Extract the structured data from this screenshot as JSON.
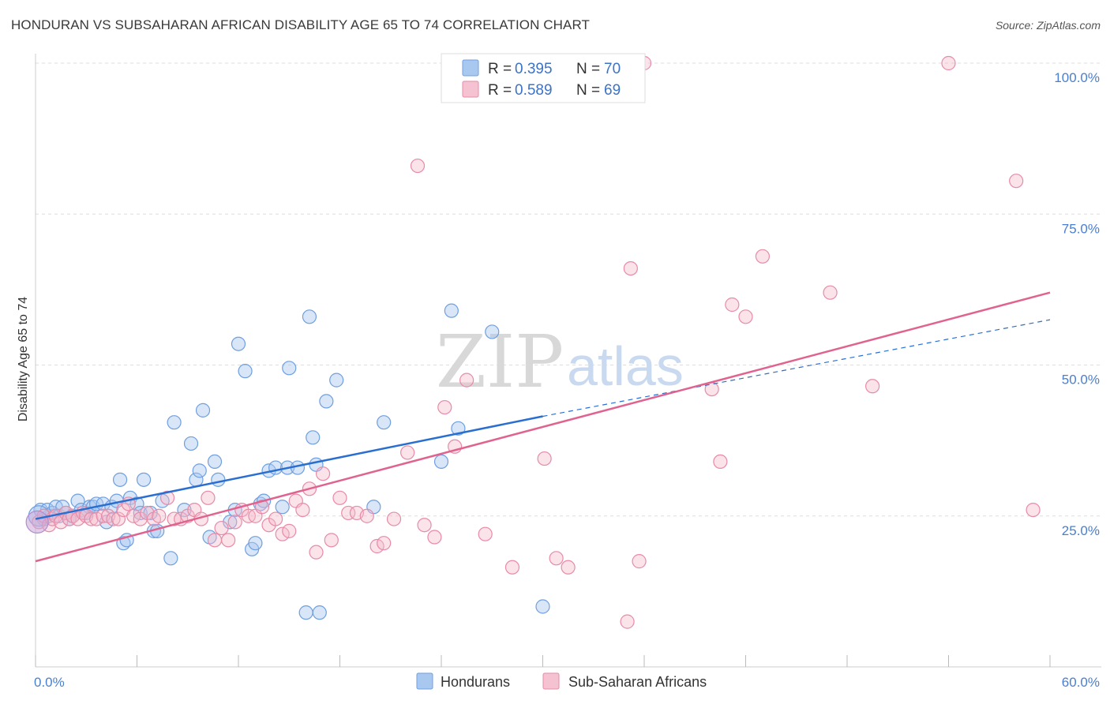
{
  "header": {
    "title": "HONDURAN VS SUBSAHARAN AFRICAN DISABILITY AGE 65 TO 74 CORRELATION CHART",
    "source": "Source: ZipAtlas.com"
  },
  "watermark": {
    "zip": "ZIP",
    "atlas": "atlas"
  },
  "legend_top": {
    "rows": [
      {
        "r_label": "R =",
        "r_value": "0.395",
        "n_label": "N =",
        "n_value": "70"
      },
      {
        "r_label": "R =",
        "r_value": "0.589",
        "n_label": "N =",
        "n_value": "69"
      }
    ]
  },
  "legend_bottom": {
    "items": [
      {
        "label": "Hondurans"
      },
      {
        "label": "Sub-Saharan Africans"
      }
    ]
  },
  "colors": {
    "blue_fill": "#a9c8f0",
    "blue_stroke": "#6f9fe0",
    "blue_line": "#2a6fd0",
    "pink_fill": "#f5b8cb",
    "pink_stroke": "#e88aa8",
    "pink_line": "#e0638f",
    "tick_label": "#4a7fd0",
    "grid": "#dddddd"
  },
  "chart_data": {
    "type": "scatter",
    "title": "HONDURAN VS SUBSAHARAN AFRICAN DISABILITY AGE 65 TO 74 CORRELATION CHART",
    "ylabel": "Disability Age 65 to 74",
    "xlabel": "",
    "xlim": [
      0,
      60
    ],
    "ylim": [
      0,
      100
    ],
    "x_tick_labels": [
      "0.0%",
      "60.0%"
    ],
    "y_tick_values": [
      25,
      50,
      75,
      100
    ],
    "y_tick_labels": [
      "25.0%",
      "50.0%",
      "75.0%",
      "100.0%"
    ],
    "grid": true,
    "series": [
      {
        "name": "Hondurans",
        "r": 0.395,
        "n": 70,
        "trend": {
          "x": [
            0,
            30
          ],
          "y": [
            24.5,
            41.5
          ],
          "dashed_to": [
            60,
            57.5
          ]
        },
        "points": [
          [
            0.3,
            26
          ],
          [
            0.5,
            24.5
          ],
          [
            0.7,
            26
          ],
          [
            0.8,
            25
          ],
          [
            1.0,
            25.5
          ],
          [
            1.2,
            26.5
          ],
          [
            1.4,
            25
          ],
          [
            1.6,
            26.5
          ],
          [
            1.8,
            25.5
          ],
          [
            2.0,
            24.5
          ],
          [
            2.2,
            25
          ],
          [
            2.5,
            27.5
          ],
          [
            2.7,
            26
          ],
          [
            3.0,
            25.5
          ],
          [
            3.2,
            26.5
          ],
          [
            3.4,
            26.5
          ],
          [
            3.6,
            27
          ],
          [
            4.0,
            27
          ],
          [
            4.2,
            24
          ],
          [
            4.5,
            26.5
          ],
          [
            4.8,
            27.5
          ],
          [
            5.0,
            31
          ],
          [
            5.2,
            20.5
          ],
          [
            5.4,
            21
          ],
          [
            5.6,
            28
          ],
          [
            6.0,
            27
          ],
          [
            6.2,
            25.5
          ],
          [
            6.4,
            31
          ],
          [
            6.8,
            25.5
          ],
          [
            7.0,
            22.5
          ],
          [
            7.2,
            22.5
          ],
          [
            7.5,
            27.5
          ],
          [
            8.0,
            18
          ],
          [
            8.2,
            40.5
          ],
          [
            8.8,
            26
          ],
          [
            9.2,
            37
          ],
          [
            9.5,
            31
          ],
          [
            9.7,
            32.5
          ],
          [
            9.9,
            42.5
          ],
          [
            10.3,
            21.5
          ],
          [
            10.6,
            34
          ],
          [
            10.8,
            31
          ],
          [
            11.5,
            24
          ],
          [
            11.8,
            26
          ],
          [
            12.0,
            53.5
          ],
          [
            12.4,
            49
          ],
          [
            12.8,
            19.5
          ],
          [
            13.0,
            20.5
          ],
          [
            13.3,
            27
          ],
          [
            13.5,
            27.5
          ],
          [
            13.8,
            32.5
          ],
          [
            14.2,
            33
          ],
          [
            14.6,
            26.5
          ],
          [
            14.9,
            33
          ],
          [
            15.0,
            49.5
          ],
          [
            15.5,
            33
          ],
          [
            16.0,
            9
          ],
          [
            16.2,
            58
          ],
          [
            16.4,
            38
          ],
          [
            16.6,
            33.5
          ],
          [
            16.8,
            9
          ],
          [
            17.2,
            44
          ],
          [
            17.8,
            47.5
          ],
          [
            20.0,
            26.5
          ],
          [
            20.6,
            40.5
          ],
          [
            24.0,
            34
          ],
          [
            24.6,
            59
          ],
          [
            25.0,
            39.5
          ],
          [
            27.0,
            55.5
          ],
          [
            30.0,
            10
          ]
        ]
      },
      {
        "name": "Sub-Saharan Africans",
        "r": 0.589,
        "n": 69,
        "trend": {
          "x": [
            0,
            60
          ],
          "y": [
            17.5,
            62
          ]
        },
        "points": [
          [
            0.2,
            24
          ],
          [
            0.5,
            25
          ],
          [
            0.8,
            23.5
          ],
          [
            1.0,
            24.5
          ],
          [
            1.2,
            25
          ],
          [
            1.5,
            24
          ],
          [
            1.8,
            25.5
          ],
          [
            2.0,
            24.5
          ],
          [
            2.2,
            25
          ],
          [
            2.5,
            24.5
          ],
          [
            2.8,
            25.5
          ],
          [
            3.0,
            25
          ],
          [
            3.3,
            24.5
          ],
          [
            3.6,
            24.5
          ],
          [
            4.0,
            25
          ],
          [
            4.3,
            25
          ],
          [
            4.6,
            24.5
          ],
          [
            4.9,
            24.5
          ],
          [
            5.2,
            26
          ],
          [
            5.5,
            27
          ],
          [
            5.8,
            25
          ],
          [
            6.2,
            24.5
          ],
          [
            6.6,
            25.5
          ],
          [
            7.0,
            24.5
          ],
          [
            7.3,
            25
          ],
          [
            7.8,
            28
          ],
          [
            8.2,
            24.5
          ],
          [
            8.6,
            24.5
          ],
          [
            9.0,
            25
          ],
          [
            9.4,
            26
          ],
          [
            9.8,
            24.5
          ],
          [
            10.2,
            28
          ],
          [
            10.6,
            21
          ],
          [
            11.0,
            23
          ],
          [
            11.4,
            21
          ],
          [
            11.8,
            24
          ],
          [
            12.2,
            26
          ],
          [
            12.6,
            25
          ],
          [
            13.0,
            25
          ],
          [
            13.4,
            26.5
          ],
          [
            13.8,
            23.5
          ],
          [
            14.2,
            24.5
          ],
          [
            14.6,
            22
          ],
          [
            15.0,
            22.5
          ],
          [
            15.4,
            27.5
          ],
          [
            15.8,
            26
          ],
          [
            16.2,
            29.5
          ],
          [
            16.6,
            19
          ],
          [
            17.0,
            32
          ],
          [
            17.5,
            21
          ],
          [
            18.0,
            28
          ],
          [
            18.5,
            25.5
          ],
          [
            19.0,
            25.5
          ],
          [
            19.6,
            25
          ],
          [
            20.2,
            20
          ],
          [
            20.6,
            20.5
          ],
          [
            21.2,
            24.5
          ],
          [
            22.0,
            35.5
          ],
          [
            22.6,
            83
          ],
          [
            23.0,
            23.5
          ],
          [
            23.6,
            21.5
          ],
          [
            24.2,
            43
          ],
          [
            24.8,
            36.5
          ],
          [
            25.5,
            47.5
          ],
          [
            26.6,
            22
          ],
          [
            28.2,
            16.5
          ],
          [
            30.1,
            34.5
          ],
          [
            30.8,
            18
          ],
          [
            31.5,
            16.5
          ]
        ],
        "extra_points": [
          [
            35.0,
            7.5
          ],
          [
            35.7,
            17.5
          ],
          [
            35.2,
            66
          ],
          [
            36.0,
            100
          ],
          [
            40.0,
            46
          ],
          [
            40.5,
            34
          ],
          [
            41.2,
            60
          ],
          [
            42.0,
            58
          ],
          [
            43.0,
            68
          ],
          [
            47.0,
            62
          ],
          [
            49.5,
            46.5
          ],
          [
            54.0,
            100
          ],
          [
            58.0,
            80.5
          ],
          [
            59.0,
            26
          ]
        ]
      }
    ]
  }
}
